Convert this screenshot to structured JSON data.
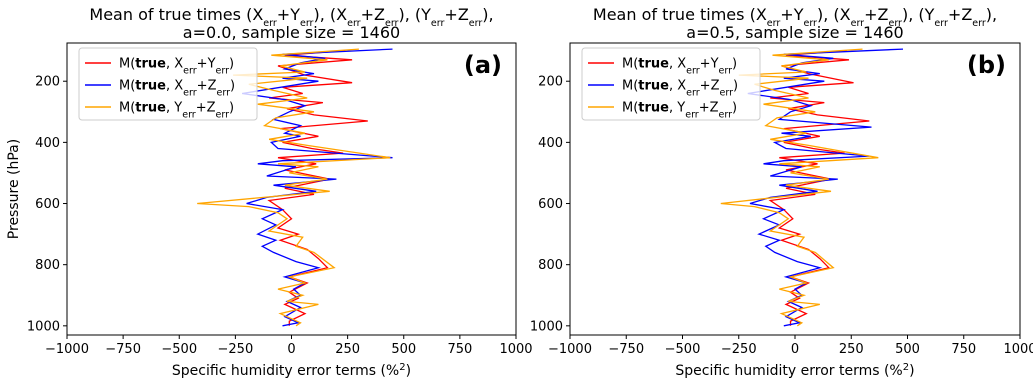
{
  "chart_data": [
    {
      "type": "line",
      "panel_label": "(a)",
      "title_line1_prefix": "Mean of  true times (",
      "title_line2": "a=0.0, sample size = 1460",
      "xlabel": "Specific  humidity error terms (%",
      "xlabel_sup": "2",
      "xlabel_suffix": ")",
      "ylabel": "Pressure (hPa)",
      "xlim": [
        -1000,
        1000
      ],
      "ylim": [
        1030,
        75
      ],
      "xticks": [
        -1000,
        -750,
        -500,
        -250,
        0,
        250,
        500,
        750,
        1000
      ],
      "yticks": [
        200,
        400,
        600,
        800,
        1000
      ],
      "legend_loc": "upper-left",
      "series": [
        {
          "name": "M(true, Xerr+Yerr)",
          "color": "#ff0000",
          "points": [
            [
              240,
              100
            ],
            [
              -30,
              115
            ],
            [
              270,
              130
            ],
            [
              -60,
              150
            ],
            [
              60,
              180
            ],
            [
              270,
              205
            ],
            [
              -40,
              220
            ],
            [
              50,
              240
            ],
            [
              -100,
              255
            ],
            [
              140,
              270
            ],
            [
              -20,
              290
            ],
            [
              100,
              310
            ],
            [
              340,
              330
            ],
            [
              -50,
              355
            ],
            [
              120,
              380
            ],
            [
              -40,
              400
            ],
            [
              90,
              420
            ],
            [
              230,
              435
            ],
            [
              -60,
              450
            ],
            [
              110,
              470
            ],
            [
              -30,
              490
            ],
            [
              170,
              520
            ],
            [
              -30,
              550
            ],
            [
              100,
              570
            ],
            [
              -100,
              590
            ],
            [
              -40,
              620
            ],
            [
              0,
              650
            ],
            [
              -60,
              680
            ],
            [
              30,
              700
            ],
            [
              -50,
              720
            ],
            [
              70,
              750
            ],
            [
              120,
              780
            ],
            [
              160,
              810
            ],
            [
              -10,
              840
            ],
            [
              70,
              860
            ],
            [
              -10,
              890
            ],
            [
              30,
              910
            ],
            [
              -30,
              930
            ],
            [
              60,
              960
            ],
            [
              -10,
              985
            ],
            [
              -10,
              1000
            ]
          ]
        },
        {
          "name": "M(true, Xerr+Zerr)",
          "color": "#0000ff",
          "points": [
            [
              450,
              95
            ],
            [
              -40,
              112
            ],
            [
              150,
              125
            ],
            [
              40,
              140
            ],
            [
              -30,
              160
            ],
            [
              100,
              175
            ],
            [
              -40,
              190
            ],
            [
              120,
              200
            ],
            [
              -220,
              240
            ],
            [
              -30,
              260
            ],
            [
              60,
              280
            ],
            [
              -10,
              300
            ],
            [
              -80,
              325
            ],
            [
              40,
              345
            ],
            [
              -30,
              370
            ],
            [
              40,
              380
            ],
            [
              -90,
              400
            ],
            [
              -60,
              420
            ],
            [
              450,
              450
            ],
            [
              -40,
              460
            ],
            [
              -150,
              470
            ],
            [
              20,
              480
            ],
            [
              -110,
              510
            ],
            [
              200,
              520
            ],
            [
              -80,
              540
            ],
            [
              110,
              560
            ],
            [
              -110,
              580
            ],
            [
              -200,
              600
            ],
            [
              -40,
              620
            ],
            [
              -130,
              650
            ],
            [
              -70,
              670
            ],
            [
              -150,
              700
            ],
            [
              -70,
              720
            ],
            [
              -130,
              740
            ],
            [
              -80,
              760
            ],
            [
              20,
              790
            ],
            [
              120,
              810
            ],
            [
              -30,
              840
            ],
            [
              60,
              860
            ],
            [
              10,
              880
            ],
            [
              40,
              900
            ],
            [
              -20,
              920
            ],
            [
              40,
              940
            ],
            [
              -30,
              970
            ],
            [
              30,
              990
            ],
            [
              -40,
              1000
            ]
          ]
        },
        {
          "name": "M(true, Yerr+Zerr)",
          "color": "#ffa500",
          "points": [
            [
              300,
              95
            ],
            [
              -90,
              115
            ],
            [
              160,
              130
            ],
            [
              -50,
              150
            ],
            [
              60,
              170
            ],
            [
              -260,
              180
            ],
            [
              70,
              190
            ],
            [
              -190,
              210
            ],
            [
              -80,
              230
            ],
            [
              70,
              255
            ],
            [
              -150,
              275
            ],
            [
              100,
              300
            ],
            [
              -70,
              320
            ],
            [
              -120,
              345
            ],
            [
              60,
              370
            ],
            [
              -100,
              390
            ],
            [
              70,
              410
            ],
            [
              440,
              450
            ],
            [
              -60,
              470
            ],
            [
              120,
              480
            ],
            [
              -10,
              500
            ],
            [
              160,
              520
            ],
            [
              -30,
              540
            ],
            [
              170,
              560
            ],
            [
              -420,
              600
            ],
            [
              -190,
              610
            ],
            [
              -60,
              630
            ],
            [
              -20,
              650
            ],
            [
              -100,
              690
            ],
            [
              50,
              710
            ],
            [
              20,
              740
            ],
            [
              100,
              760
            ],
            [
              190,
              810
            ],
            [
              -10,
              840
            ],
            [
              60,
              860
            ],
            [
              -60,
              880
            ],
            [
              50,
              900
            ],
            [
              -20,
              920
            ],
            [
              120,
              930
            ],
            [
              -50,
              960
            ],
            [
              40,
              990
            ],
            [
              20,
              1000
            ]
          ]
        }
      ]
    },
    {
      "type": "line",
      "panel_label": "(b)",
      "title_line1_prefix": "Mean of  true times (",
      "title_line2": "a=0.5, sample size = 1460",
      "xlabel": "Specific  humidity error terms (%",
      "xlabel_sup": "2",
      "xlabel_suffix": ")",
      "ylabel": "",
      "xlim": [
        -1000,
        1000
      ],
      "ylim": [
        1030,
        75
      ],
      "xticks": [
        -1000,
        -750,
        -500,
        -250,
        0,
        250,
        500,
        750,
        1000
      ],
      "yticks": [
        200,
        400,
        600,
        800,
        1000
      ],
      "legend_loc": "upper-left",
      "series": [
        {
          "name": "M(true, Xerr+Yerr)",
          "color": "#ff0000",
          "points": [
            [
              230,
              100
            ],
            [
              -40,
              115
            ],
            [
              240,
              130
            ],
            [
              -60,
              150
            ],
            [
              60,
              175
            ],
            [
              260,
              205
            ],
            [
              -30,
              220
            ],
            [
              60,
              240
            ],
            [
              -110,
              255
            ],
            [
              130,
              270
            ],
            [
              -30,
              290
            ],
            [
              100,
              310
            ],
            [
              330,
              330
            ],
            [
              -50,
              355
            ],
            [
              110,
              380
            ],
            [
              -50,
              400
            ],
            [
              80,
              420
            ],
            [
              220,
              435
            ],
            [
              -70,
              450
            ],
            [
              100,
              470
            ],
            [
              -40,
              490
            ],
            [
              160,
              520
            ],
            [
              -40,
              550
            ],
            [
              90,
              570
            ],
            [
              -110,
              590
            ],
            [
              -50,
              620
            ],
            [
              -10,
              650
            ],
            [
              -70,
              680
            ],
            [
              20,
              700
            ],
            [
              -60,
              720
            ],
            [
              60,
              750
            ],
            [
              110,
              780
            ],
            [
              150,
              810
            ],
            [
              -20,
              840
            ],
            [
              60,
              860
            ],
            [
              -20,
              890
            ],
            [
              20,
              910
            ],
            [
              -40,
              930
            ],
            [
              50,
              960
            ],
            [
              -20,
              985
            ],
            [
              -20,
              1000
            ]
          ]
        },
        {
          "name": "M(true, Xerr+Zerr)",
          "color": "#0000ff",
          "points": [
            [
              480,
              95
            ],
            [
              -50,
              112
            ],
            [
              170,
              125
            ],
            [
              30,
              140
            ],
            [
              -40,
              160
            ],
            [
              110,
              175
            ],
            [
              -50,
              190
            ],
            [
              130,
              200
            ],
            [
              -210,
              240
            ],
            [
              -20,
              260
            ],
            [
              70,
              280
            ],
            [
              -20,
              300
            ],
            [
              -70,
              325
            ],
            [
              340,
              350
            ],
            [
              -60,
              370
            ],
            [
              70,
              380
            ],
            [
              -90,
              400
            ],
            [
              -40,
              420
            ],
            [
              330,
              445
            ],
            [
              -50,
              460
            ],
            [
              -140,
              470
            ],
            [
              30,
              480
            ],
            [
              -110,
              510
            ],
            [
              190,
              520
            ],
            [
              -70,
              540
            ],
            [
              100,
              560
            ],
            [
              -110,
              580
            ],
            [
              -200,
              600
            ],
            [
              -50,
              620
            ],
            [
              -140,
              650
            ],
            [
              -70,
              670
            ],
            [
              -160,
              700
            ],
            [
              -70,
              720
            ],
            [
              -130,
              740
            ],
            [
              -90,
              760
            ],
            [
              10,
              790
            ],
            [
              110,
              810
            ],
            [
              -40,
              840
            ],
            [
              50,
              860
            ],
            [
              0,
              880
            ],
            [
              30,
              900
            ],
            [
              -30,
              920
            ],
            [
              30,
              940
            ],
            [
              -40,
              970
            ],
            [
              20,
              990
            ],
            [
              -50,
              1000
            ]
          ]
        },
        {
          "name": "M(true, Yerr+Zerr)",
          "color": "#ffa500",
          "points": [
            [
              300,
              95
            ],
            [
              -100,
              115
            ],
            [
              150,
              130
            ],
            [
              -60,
              150
            ],
            [
              50,
              170
            ],
            [
              -250,
              180
            ],
            [
              60,
              190
            ],
            [
              -180,
              210
            ],
            [
              -90,
              230
            ],
            [
              60,
              255
            ],
            [
              -140,
              275
            ],
            [
              90,
              300
            ],
            [
              -80,
              320
            ],
            [
              -130,
              345
            ],
            [
              50,
              370
            ],
            [
              -110,
              390
            ],
            [
              60,
              410
            ],
            [
              370,
              450
            ],
            [
              -70,
              470
            ],
            [
              110,
              480
            ],
            [
              -20,
              500
            ],
            [
              150,
              520
            ],
            [
              -40,
              540
            ],
            [
              160,
              560
            ],
            [
              -330,
              600
            ],
            [
              -180,
              610
            ],
            [
              -70,
              630
            ],
            [
              -30,
              650
            ],
            [
              -110,
              690
            ],
            [
              40,
              710
            ],
            [
              10,
              740
            ],
            [
              90,
              760
            ],
            [
              170,
              810
            ],
            [
              -20,
              840
            ],
            [
              50,
              860
            ],
            [
              -70,
              880
            ],
            [
              40,
              900
            ],
            [
              -30,
              920
            ],
            [
              110,
              930
            ],
            [
              -60,
              960
            ],
            [
              30,
              990
            ],
            [
              10,
              1000
            ]
          ]
        }
      ]
    }
  ]
}
